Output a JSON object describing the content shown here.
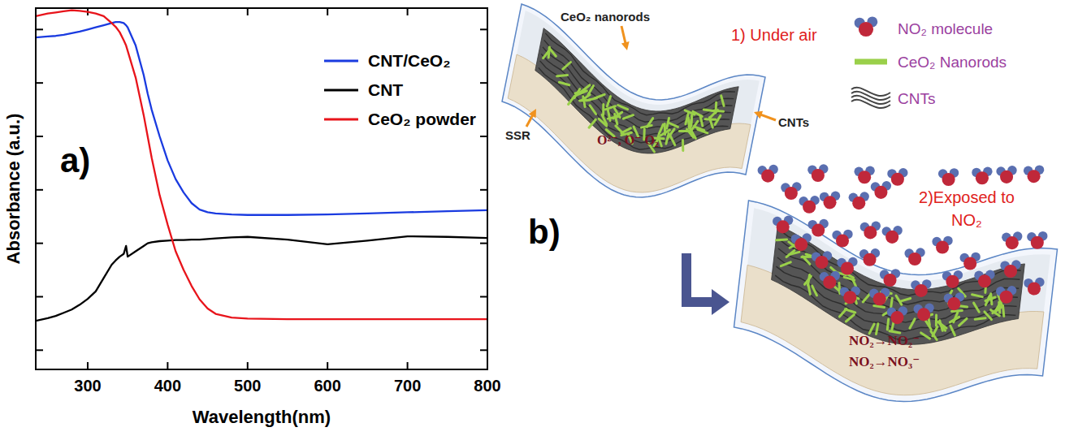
{
  "chart_data": {
    "type": "line",
    "panel_label": "a)",
    "x_label": "Wavelength(nm)",
    "y_label": "Absorbance (a.u.)",
    "xlim": [
      235,
      800
    ],
    "xticks": [
      300,
      400,
      500,
      600,
      700,
      800
    ],
    "ylim": [
      0.64,
      7.4
    ],
    "yticks": [
      1,
      2,
      3,
      4,
      5,
      6,
      7
    ],
    "tick_labels": "x",
    "legend": "upper right",
    "x": [
      235,
      250,
      260,
      270,
      280,
      290,
      300,
      310,
      320,
      330,
      335,
      340,
      345,
      348,
      350,
      360,
      370,
      375,
      380,
      390,
      400,
      410,
      420,
      430,
      440,
      450,
      460,
      480,
      500,
      550,
      600,
      650,
      700,
      750,
      800
    ],
    "series": [
      {
        "name": "CNT/CeO₂",
        "color": "#1a3be0",
        "values": [
          6.85,
          6.87,
          6.88,
          6.9,
          6.93,
          6.96,
          7.0,
          7.04,
          7.08,
          7.12,
          7.14,
          7.14,
          7.12,
          7.08,
          7.04,
          6.7,
          6.15,
          5.8,
          5.5,
          5.0,
          4.55,
          4.2,
          3.95,
          3.75,
          3.63,
          3.58,
          3.56,
          3.54,
          3.53,
          3.53,
          3.54,
          3.56,
          3.58,
          3.6,
          3.62
        ]
      },
      {
        "name": "CNT",
        "color": "#000000",
        "values": [
          1.55,
          1.6,
          1.64,
          1.7,
          1.76,
          1.85,
          1.96,
          2.1,
          2.35,
          2.6,
          2.68,
          2.75,
          2.8,
          2.95,
          2.75,
          2.85,
          2.95,
          3.0,
          3.02,
          3.04,
          3.05,
          3.06,
          3.06,
          3.07,
          3.07,
          3.08,
          3.09,
          3.11,
          3.12,
          3.07,
          2.98,
          3.05,
          3.13,
          3.12,
          3.1
        ]
      },
      {
        "name": "CeO₂ powder",
        "color": "#e8141b",
        "values": [
          7.25,
          7.3,
          7.32,
          7.34,
          7.36,
          7.35,
          7.33,
          7.3,
          7.25,
          7.12,
          7.05,
          6.95,
          6.8,
          6.7,
          6.6,
          6.1,
          5.4,
          5.0,
          4.6,
          3.9,
          3.35,
          2.85,
          2.5,
          2.2,
          1.95,
          1.78,
          1.68,
          1.61,
          1.59,
          1.58,
          1.58,
          1.58,
          1.58,
          1.58,
          1.58
        ]
      }
    ]
  },
  "diagram": {
    "panel_label": "b)",
    "step1": "1) Under air",
    "step2": "2)Exposed to NO₂",
    "labels": {
      "nanorods": "CeO₂ nanorods",
      "cnts": "CNTs",
      "ssr": "SSR"
    },
    "surface_species": "O²⁻, O⁻ O₂",
    "key_items": [
      {
        "label": "NO₂ molecule"
      },
      {
        "label": "CeO₂ Nanorods"
      },
      {
        "label": "CNTs"
      }
    ],
    "reactions": [
      "NO₂→NO₂⁻",
      "NO₂→NO₃⁻"
    ]
  }
}
